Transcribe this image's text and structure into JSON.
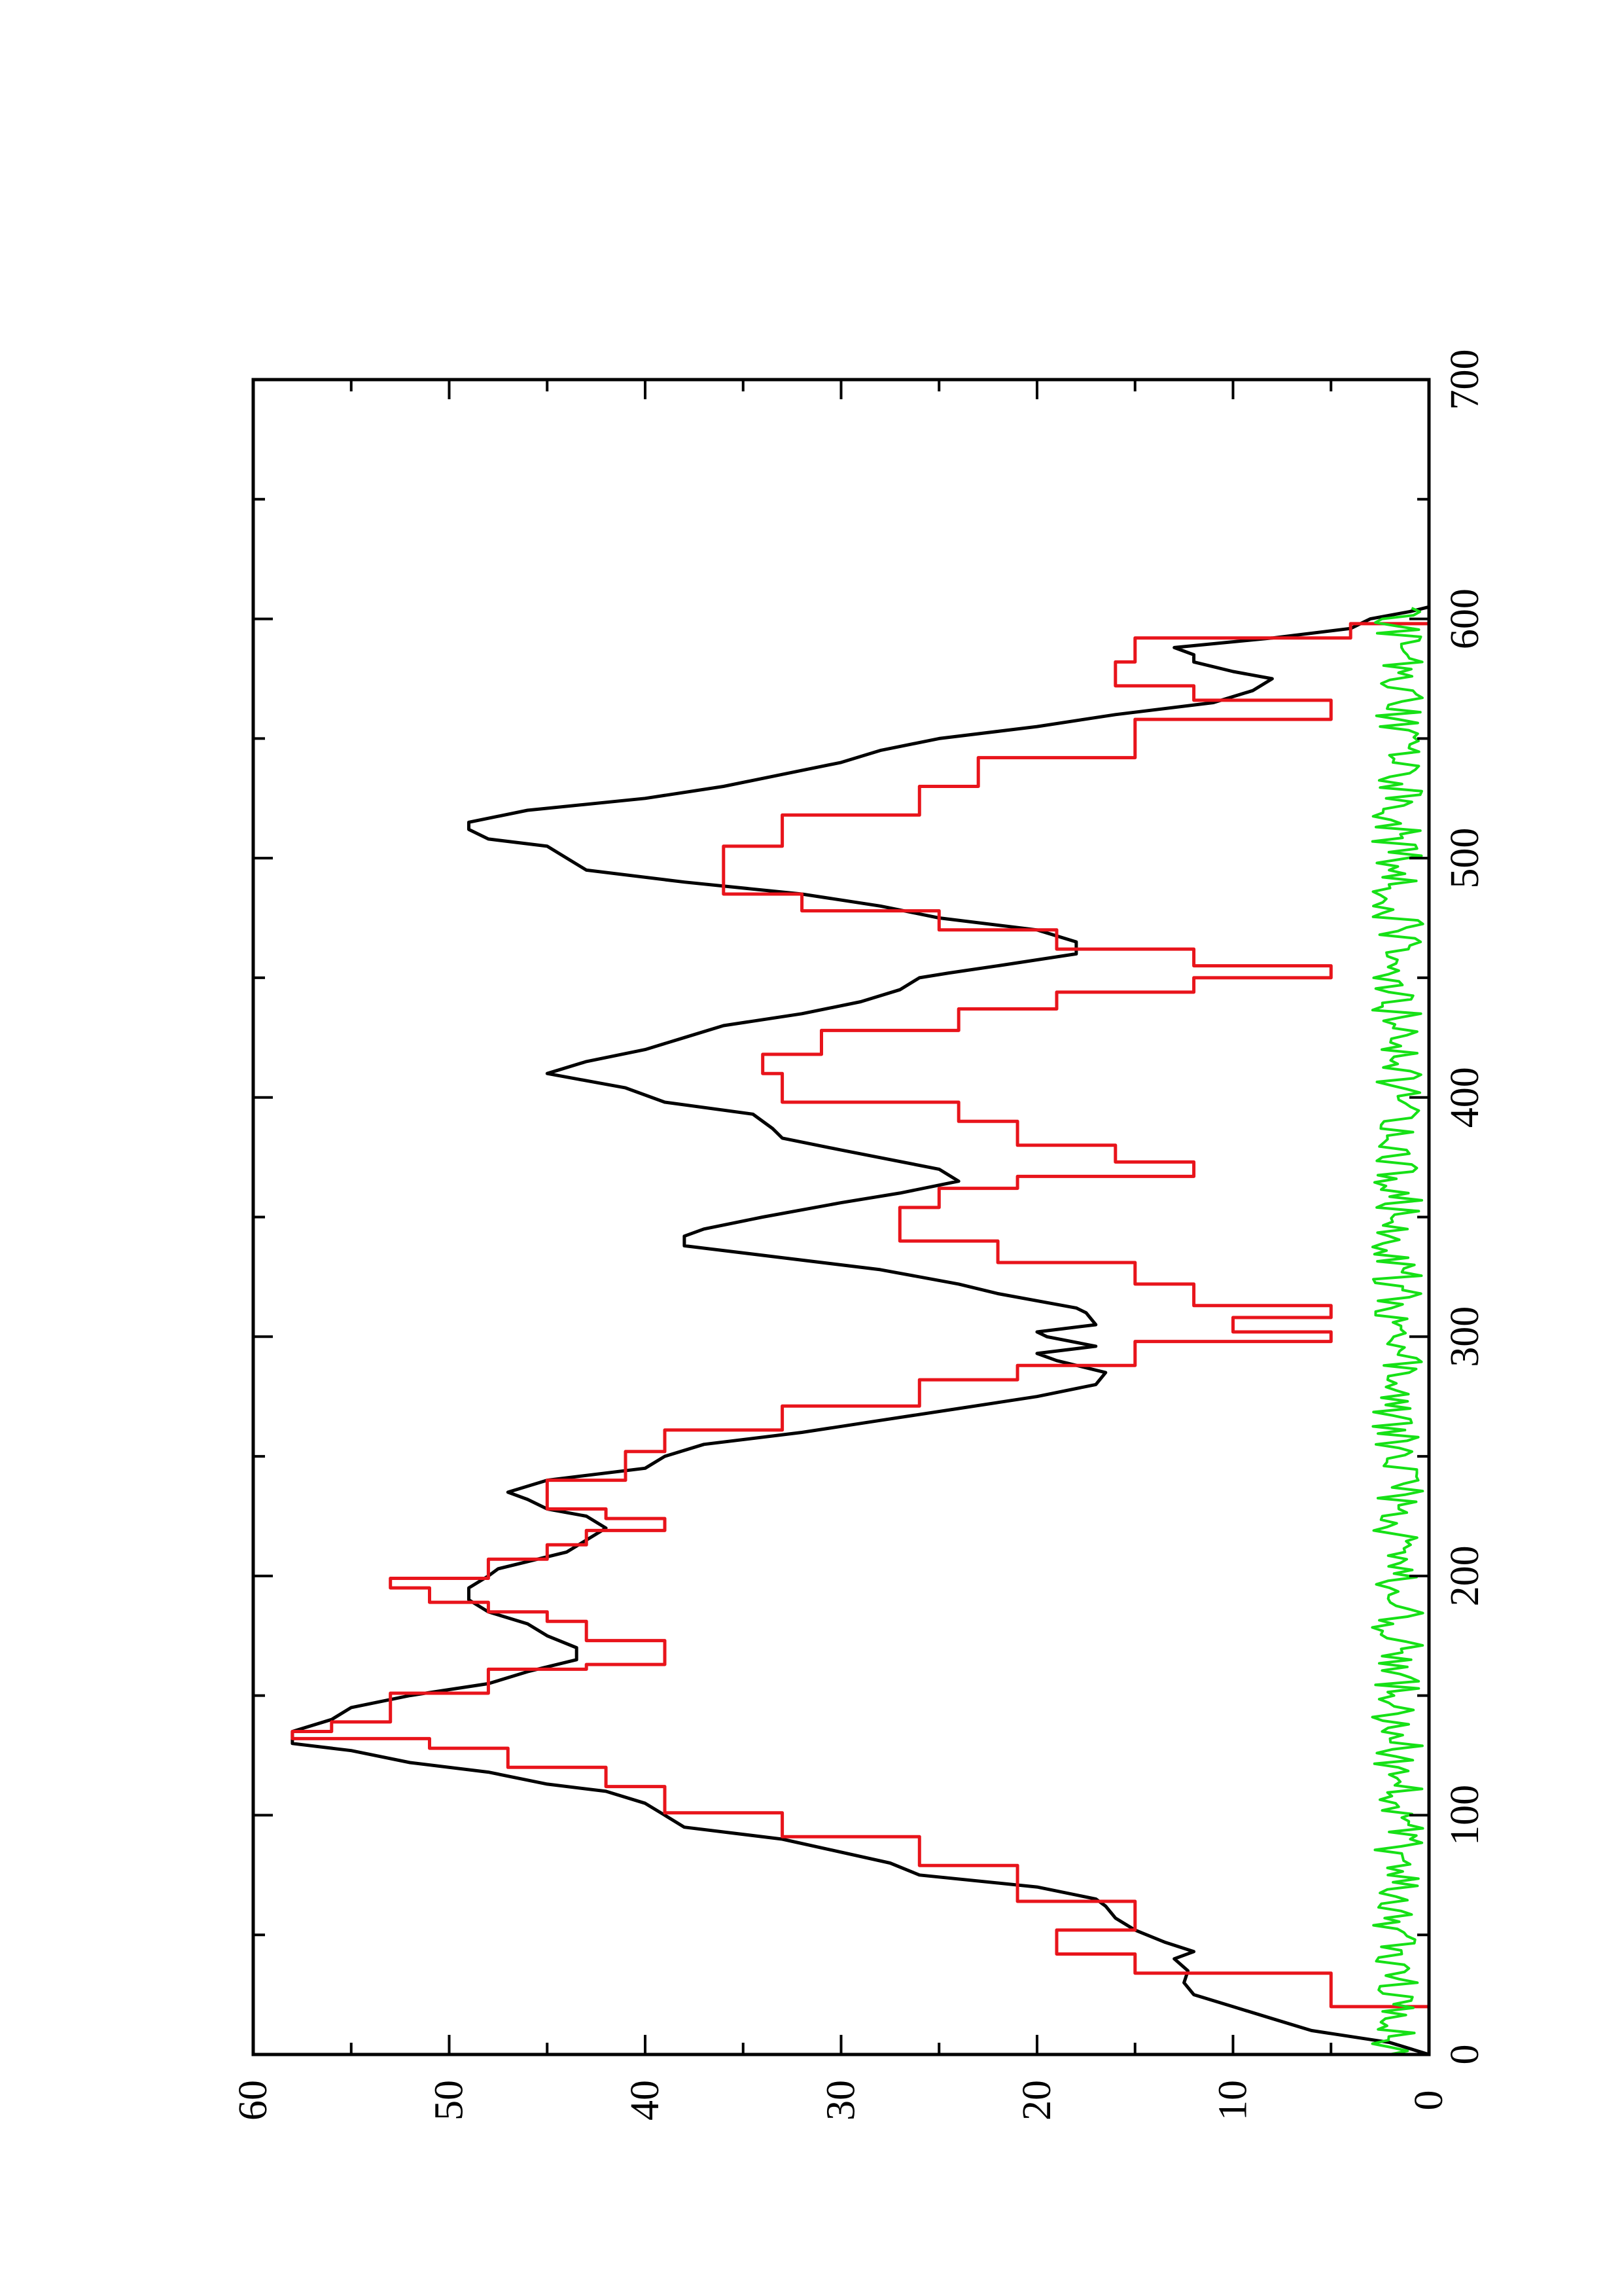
{
  "chart_data": {
    "type": "line",
    "orientation": "rotated 90 degrees counter-clockwise (page in landscape printed on portrait)",
    "title": "",
    "xlabel": "",
    "ylabel": "",
    "xlim": [
      0,
      700
    ],
    "ylim": [
      0,
      60
    ],
    "x_ticks": [
      "0",
      "100",
      "200",
      "300",
      "400",
      "500",
      "600",
      "700"
    ],
    "y_ticks": [
      "0",
      "10",
      "20",
      "30",
      "40",
      "50",
      "60"
    ],
    "grid": false,
    "legend": "none",
    "series": [
      {
        "color": "#000000",
        "style": "line",
        "points": [
          [
            0,
            0
          ],
          [
            5,
            2
          ],
          [
            10,
            6
          ],
          [
            15,
            8
          ],
          [
            20,
            10
          ],
          [
            25,
            12
          ],
          [
            30,
            12.5
          ],
          [
            35,
            12.3
          ],
          [
            40,
            13
          ],
          [
            43,
            12
          ],
          [
            47,
            13.5
          ],
          [
            52,
            15
          ],
          [
            57,
            16
          ],
          [
            62,
            16.5
          ],
          [
            65,
            17
          ],
          [
            70,
            20
          ],
          [
            75,
            26
          ],
          [
            80,
            27.5
          ],
          [
            90,
            33
          ],
          [
            95,
            38
          ],
          [
            100,
            39
          ],
          [
            105,
            40
          ],
          [
            110,
            42
          ],
          [
            113,
            45
          ],
          [
            118,
            48
          ],
          [
            122,
            52
          ],
          [
            127,
            55
          ],
          [
            130,
            58
          ],
          [
            135,
            58
          ],
          [
            140,
            56
          ],
          [
            145,
            55
          ],
          [
            150,
            52
          ],
          [
            155,
            48
          ],
          [
            160,
            46
          ],
          [
            165,
            43.5
          ],
          [
            170,
            43.5
          ],
          [
            175,
            45
          ],
          [
            180,
            46
          ],
          [
            185,
            48
          ],
          [
            190,
            49
          ],
          [
            195,
            49
          ],
          [
            200,
            48
          ],
          [
            203,
            47.5
          ],
          [
            210,
            44
          ],
          [
            215,
            43
          ],
          [
            220,
            42
          ],
          [
            225,
            43
          ],
          [
            228,
            45
          ],
          [
            232,
            46
          ],
          [
            235,
            47
          ],
          [
            240,
            45
          ],
          [
            245,
            40
          ],
          [
            250,
            39
          ],
          [
            255,
            37
          ],
          [
            260,
            32
          ],
          [
            265,
            28
          ],
          [
            270,
            24
          ],
          [
            275,
            20
          ],
          [
            280,
            17
          ],
          [
            285,
            16.5
          ],
          [
            290,
            19
          ],
          [
            293,
            20
          ],
          [
            296,
            17
          ],
          [
            300,
            19.5
          ],
          [
            302,
            20
          ],
          [
            305,
            17
          ],
          [
            310,
            17.5
          ],
          [
            312,
            18
          ],
          [
            318,
            22
          ],
          [
            322,
            24
          ],
          [
            328,
            28
          ],
          [
            333,
            33
          ],
          [
            338,
            38
          ],
          [
            342,
            38
          ],
          [
            345,
            37
          ],
          [
            350,
            34
          ],
          [
            356,
            30
          ],
          [
            360,
            27
          ],
          [
            365,
            24
          ],
          [
            370,
            25
          ],
          [
            378,
            30
          ],
          [
            383,
            33
          ],
          [
            387,
            33.5
          ],
          [
            393,
            34.5
          ],
          [
            398,
            39
          ],
          [
            404,
            41
          ],
          [
            410,
            45
          ],
          [
            415,
            43
          ],
          [
            420,
            40
          ],
          [
            425,
            38
          ],
          [
            430,
            36
          ],
          [
            435,
            32
          ],
          [
            440,
            29
          ],
          [
            445,
            27
          ],
          [
            450,
            26
          ],
          [
            452,
            24.5
          ],
          [
            455,
            22
          ],
          [
            460,
            18
          ],
          [
            465,
            18
          ],
          [
            470,
            20
          ],
          [
            475,
            25
          ],
          [
            480,
            28
          ],
          [
            485,
            32
          ],
          [
            490,
            38
          ],
          [
            495,
            43
          ],
          [
            500,
            44
          ],
          [
            505,
            45
          ],
          [
            508,
            48
          ],
          [
            512,
            49
          ],
          [
            515,
            49
          ],
          [
            520,
            46
          ],
          [
            525,
            40
          ],
          [
            530,
            36
          ],
          [
            535,
            33
          ],
          [
            540,
            30
          ],
          [
            545,
            28
          ],
          [
            550,
            25
          ],
          [
            555,
            20
          ],
          [
            560,
            16
          ],
          [
            565,
            11
          ],
          [
            570,
            9
          ],
          [
            575,
            8
          ],
          [
            578,
            10
          ],
          [
            582,
            12
          ],
          [
            585,
            12
          ],
          [
            588,
            13
          ],
          [
            592,
            8
          ],
          [
            596,
            4
          ],
          [
            600,
            3
          ],
          [
            603,
            1
          ],
          [
            605,
            0
          ]
        ]
      },
      {
        "color": "#e8141b",
        "style": "step",
        "points": [
          [
            0,
            0
          ],
          [
            20,
            0
          ],
          [
            20,
            5
          ],
          [
            34,
            5
          ],
          [
            34,
            15
          ],
          [
            42,
            15
          ],
          [
            42,
            19
          ],
          [
            52,
            19
          ],
          [
            52,
            15
          ],
          [
            64,
            15
          ],
          [
            64,
            21
          ],
          [
            79,
            21
          ],
          [
            79,
            26
          ],
          [
            91,
            26
          ],
          [
            91,
            33
          ],
          [
            101,
            33
          ],
          [
            101,
            39
          ],
          [
            112,
            39
          ],
          [
            112,
            42
          ],
          [
            120,
            42
          ],
          [
            120,
            47
          ],
          [
            128,
            47
          ],
          [
            128,
            51
          ],
          [
            132,
            51
          ],
          [
            132,
            58
          ],
          [
            135,
            58
          ],
          [
            135,
            56
          ],
          [
            139,
            56
          ],
          [
            139,
            53
          ],
          [
            151,
            53
          ],
          [
            151,
            48
          ],
          [
            161,
            48
          ],
          [
            161,
            43
          ],
          [
            163,
            43
          ],
          [
            163,
            39
          ],
          [
            173,
            39
          ],
          [
            173,
            43
          ],
          [
            181,
            43
          ],
          [
            181,
            45
          ],
          [
            185,
            45
          ],
          [
            185,
            48
          ],
          [
            189,
            48
          ],
          [
            189,
            51
          ],
          [
            195,
            51
          ],
          [
            195,
            53
          ],
          [
            199,
            53
          ],
          [
            199,
            48
          ],
          [
            207,
            48
          ],
          [
            207,
            45
          ],
          [
            213,
            45
          ],
          [
            213,
            43
          ],
          [
            219,
            43
          ],
          [
            219,
            39
          ],
          [
            224,
            39
          ],
          [
            224,
            42
          ],
          [
            228,
            42
          ],
          [
            228,
            45
          ],
          [
            240,
            45
          ],
          [
            240,
            41
          ],
          [
            252,
            41
          ],
          [
            252,
            39
          ],
          [
            261,
            39
          ],
          [
            261,
            33
          ],
          [
            271,
            33
          ],
          [
            271,
            26
          ],
          [
            282,
            26
          ],
          [
            282,
            21
          ],
          [
            288,
            21
          ],
          [
            288,
            15
          ],
          [
            298,
            15
          ],
          [
            298,
            5
          ],
          [
            302,
            5
          ],
          [
            302,
            10
          ],
          [
            308,
            10
          ],
          [
            308,
            5
          ],
          [
            313,
            5
          ],
          [
            313,
            12
          ],
          [
            322,
            12
          ],
          [
            322,
            15
          ],
          [
            331,
            15
          ],
          [
            331,
            22
          ],
          [
            340,
            22
          ],
          [
            340,
            27
          ],
          [
            347,
            27
          ],
          [
            347,
            27
          ],
          [
            354,
            27
          ],
          [
            354,
            25
          ],
          [
            362,
            25
          ],
          [
            362,
            21
          ],
          [
            367,
            21
          ],
          [
            367,
            12
          ],
          [
            373,
            12
          ],
          [
            373,
            16
          ],
          [
            380,
            16
          ],
          [
            380,
            21
          ],
          [
            390,
            21
          ],
          [
            390,
            24
          ],
          [
            398,
            24
          ],
          [
            398,
            33
          ],
          [
            410,
            33
          ],
          [
            410,
            34
          ],
          [
            418,
            34
          ],
          [
            418,
            31
          ],
          [
            428,
            31
          ],
          [
            428,
            24
          ],
          [
            437,
            24
          ],
          [
            437,
            19
          ],
          [
            444,
            19
          ],
          [
            444,
            12
          ],
          [
            450,
            12
          ],
          [
            450,
            5
          ],
          [
            455,
            5
          ],
          [
            455,
            12
          ],
          [
            462,
            12
          ],
          [
            462,
            19
          ],
          [
            470,
            19
          ],
          [
            470,
            25
          ],
          [
            478,
            25
          ],
          [
            478,
            32
          ],
          [
            485,
            32
          ],
          [
            485,
            36
          ],
          [
            492,
            36
          ],
          [
            492,
            36
          ],
          [
            505,
            36
          ],
          [
            505,
            33
          ],
          [
            518,
            33
          ],
          [
            518,
            26
          ],
          [
            530,
            26
          ],
          [
            530,
            23
          ],
          [
            542,
            23
          ],
          [
            542,
            15
          ],
          [
            558,
            15
          ],
          [
            558,
            5
          ],
          [
            566,
            5
          ],
          [
            566,
            12
          ],
          [
            572,
            12
          ],
          [
            572,
            16
          ],
          [
            582,
            16
          ],
          [
            582,
            15
          ],
          [
            592,
            15
          ],
          [
            592,
            4
          ],
          [
            598,
            4
          ],
          [
            598,
            0
          ]
        ]
      },
      {
        "color": "#16e016",
        "style": "noise",
        "x_range": [
          0,
          605
        ],
        "y_range": [
          0,
          4
        ],
        "mean": 1.6
      }
    ]
  }
}
